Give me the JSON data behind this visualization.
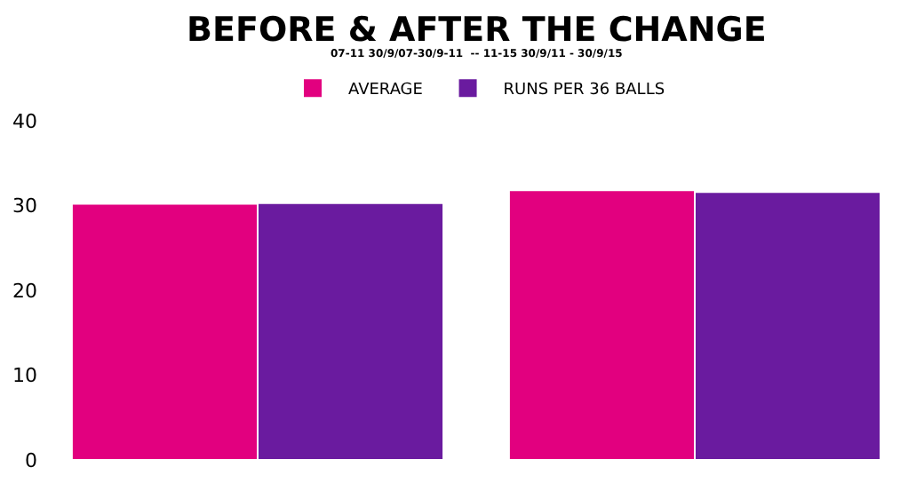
{
  "chart_data": {
    "type": "bar",
    "title": "BEFORE & AFTER THE CHANGE",
    "subtitle": "07-11 30/9/07-30/9-11  -- 11-15 30/9/11 - 30/9/15",
    "categories": [
      null,
      null
    ],
    "series": [
      {
        "name": "AVERAGE",
        "color": "#e2007f",
        "values": [
          30.2,
          31.8
        ]
      },
      {
        "name": "RUNS PER 36 BALLS",
        "color": "#6a1b9f",
        "values": [
          30.3,
          31.6
        ]
      }
    ],
    "ylim": [
      0,
      40
    ],
    "yticks": [
      0,
      10,
      20,
      30,
      40
    ],
    "legend": "top"
  }
}
